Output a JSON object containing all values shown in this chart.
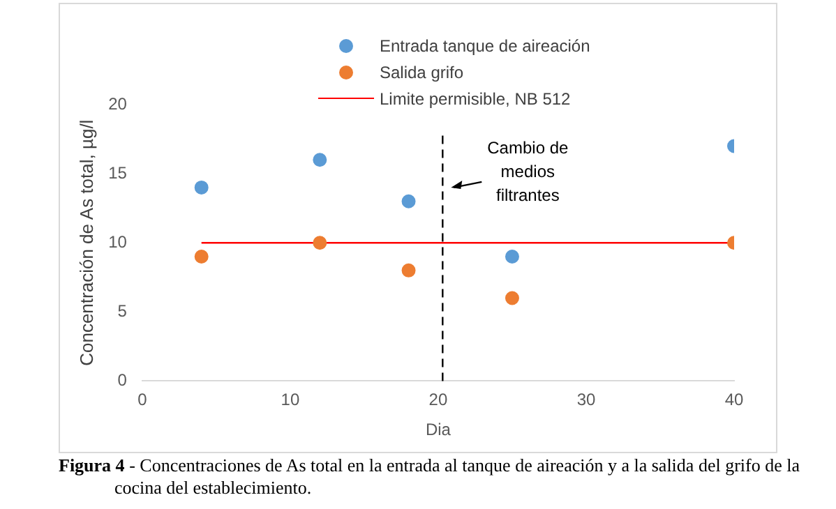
{
  "chart_data": {
    "type": "scatter",
    "xlabel": "Dia",
    "ylabel": "Concentración de As total, µg/l",
    "xlim": [
      0,
      40
    ],
    "xticks": [
      0,
      10,
      20,
      30,
      40
    ],
    "ylim": [
      0,
      20
    ],
    "yticks": [
      0,
      5,
      10,
      15,
      20
    ],
    "grid": false,
    "legend": "top",
    "marker": "circle",
    "series": [
      {
        "name": "Entrada tanque de aireación",
        "color": "#5b9bd5",
        "x": [
          4,
          12,
          18,
          25,
          40
        ],
        "values": [
          14,
          16,
          13,
          9,
          17
        ]
      },
      {
        "name": "Salida grifo",
        "color": "#ed7d31",
        "x": [
          4,
          12,
          18,
          25,
          40
        ],
        "values": [
          9,
          10,
          8,
          6,
          10
        ]
      },
      {
        "name": "Limite permisible, NB 512",
        "type": "line",
        "marker": "none",
        "color": "#ff0000",
        "x": [
          4,
          40
        ],
        "values": [
          10,
          10
        ]
      }
    ],
    "ref_lines": [
      {
        "axis": "x",
        "value": 20.3,
        "color": "#000000",
        "line_style": "dashed"
      }
    ],
    "annotations": [
      {
        "text": "Cambio de medios filtrantes",
        "x": 20.3,
        "y": 14
      },
      "Figura 4",
      "- Concentraciones de As total en la entrada al tanque de aireación y a la salida del grifo de la cocina del establecimiento."
    ]
  }
}
